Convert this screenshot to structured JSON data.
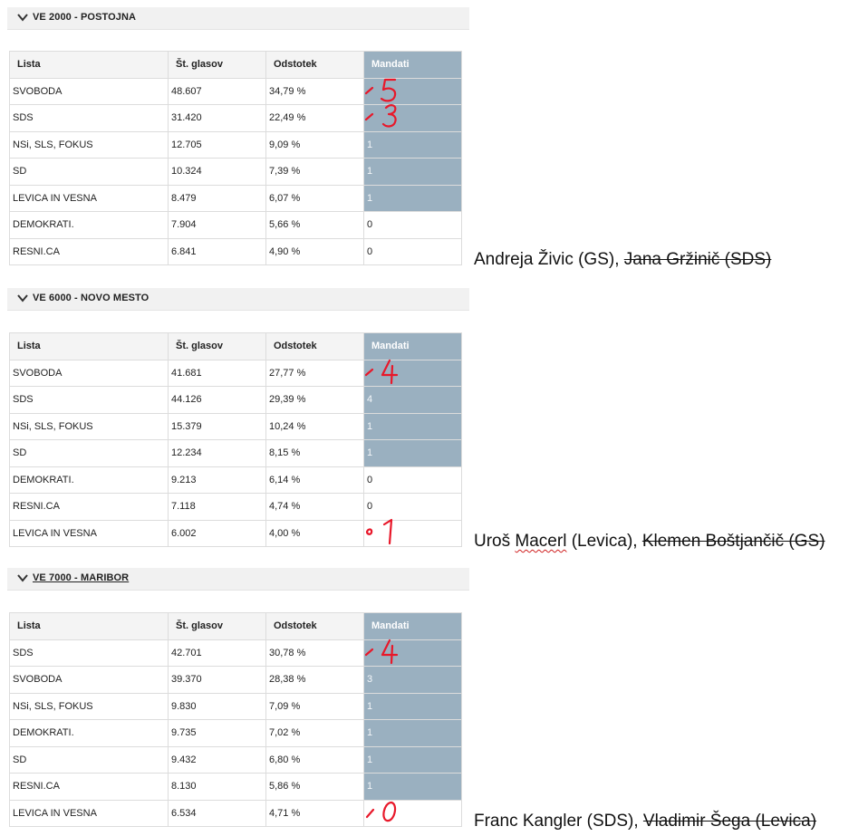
{
  "sections": [
    {
      "title": "VE 2000 - POSTOJNA",
      "headers": {
        "lista": "Lista",
        "glasovi": "Št. glasov",
        "odstotek": "Odstotek",
        "mandati": "Mandati"
      },
      "rows": [
        {
          "lista": "SVOBODA",
          "glasovi": "48.607",
          "odstotek": "34,79 %",
          "mandati": "",
          "highlight": true,
          "handwritten": "5"
        },
        {
          "lista": "SDS",
          "glasovi": "31.420",
          "odstotek": "22,49 %",
          "mandati": "",
          "highlight": true,
          "handwritten": "3"
        },
        {
          "lista": "NSi, SLS, FOKUS",
          "glasovi": "12.705",
          "odstotek": "9,09 %",
          "mandati": "1",
          "highlight": true
        },
        {
          "lista": "SD",
          "glasovi": "10.324",
          "odstotek": "7,39 %",
          "mandati": "1",
          "highlight": true
        },
        {
          "lista": "LEVICA IN VESNA",
          "glasovi": "8.479",
          "odstotek": "6,07 %",
          "mandati": "1",
          "highlight": true
        },
        {
          "lista": "DEMOKRATI.",
          "glasovi": "7.904",
          "odstotek": "5,66 %",
          "mandati": "0",
          "highlight": false
        },
        {
          "lista": "RESNI.CA",
          "glasovi": "6.841",
          "odstotek": "4,90 %",
          "mandati": "0",
          "highlight": false
        }
      ],
      "note": {
        "name": "Andreja Živic (GS), ",
        "struck": "Jana Gržinič (SDS)"
      }
    },
    {
      "title": "VE 6000 - NOVO MESTO",
      "headers": {
        "lista": "Lista",
        "glasovi": "Št. glasov",
        "odstotek": "Odstotek",
        "mandati": "Mandati"
      },
      "rows": [
        {
          "lista": "SVOBODA",
          "glasovi": "41.681",
          "odstotek": "27,77 %",
          "mandati": "",
          "highlight": true,
          "handwritten": "4"
        },
        {
          "lista": "SDS",
          "glasovi": "44.126",
          "odstotek": "29,39 %",
          "mandati": "4",
          "highlight": true
        },
        {
          "lista": "NSi, SLS, FOKUS",
          "glasovi": "15.379",
          "odstotek": "10,24 %",
          "mandati": "1",
          "highlight": true
        },
        {
          "lista": "SD",
          "glasovi": "12.234",
          "odstotek": "8,15 %",
          "mandati": "1",
          "highlight": true
        },
        {
          "lista": "DEMOKRATI.",
          "glasovi": "9.213",
          "odstotek": "6,14 %",
          "mandati": "0",
          "highlight": false
        },
        {
          "lista": "RESNI.CA",
          "glasovi": "7.118",
          "odstotek": "4,74 %",
          "mandati": "0",
          "highlight": false
        },
        {
          "lista": "LEVICA IN VESNA",
          "glasovi": "6.002",
          "odstotek": "4,00 %",
          "mandati": "",
          "highlight": false,
          "handwritten": "1"
        }
      ],
      "note": {
        "prefix": "Uroš ",
        "squiggle": "Macerl",
        "name": " (Levica), ",
        "struck": "Klemen Boštjančič (GS)"
      }
    },
    {
      "title": "VE 7000 - MARIBOR",
      "headers": {
        "lista": "Lista",
        "glasovi": "Št. glasov",
        "odstotek": "Odstotek",
        "mandati": "Mandati"
      },
      "rows": [
        {
          "lista": "SDS",
          "glasovi": "42.701",
          "odstotek": "30,78 %",
          "mandati": "",
          "highlight": true,
          "handwritten": "4"
        },
        {
          "lista": "SVOBODA",
          "glasovi": "39.370",
          "odstotek": "28,38 %",
          "mandati": "3",
          "highlight": true
        },
        {
          "lista": "NSi, SLS, FOKUS",
          "glasovi": "9.830",
          "odstotek": "7,09 %",
          "mandati": "1",
          "highlight": true
        },
        {
          "lista": "DEMOKRATI.",
          "glasovi": "9.735",
          "odstotek": "7,02 %",
          "mandati": "1",
          "highlight": true
        },
        {
          "lista": "SD",
          "glasovi": "9.432",
          "odstotek": "6,80 %",
          "mandati": "1",
          "highlight": true
        },
        {
          "lista": "RESNI.CA",
          "glasovi": "8.130",
          "odstotek": "5,86 %",
          "mandati": "1",
          "highlight": true
        },
        {
          "lista": "LEVICA IN VESNA",
          "glasovi": "6.534",
          "odstotek": "4,71 %",
          "mandati": "",
          "highlight": false,
          "handwritten": "0"
        }
      ],
      "note": {
        "name": "Franc Kangler (SDS), ",
        "struck": "Vladimir Šega (Levica)"
      }
    }
  ],
  "colors": {
    "mandati_fill": "#9ab0c0",
    "pen": "#e8182a"
  },
  "icons": {
    "section_toggle": "chevron-down-icon"
  }
}
